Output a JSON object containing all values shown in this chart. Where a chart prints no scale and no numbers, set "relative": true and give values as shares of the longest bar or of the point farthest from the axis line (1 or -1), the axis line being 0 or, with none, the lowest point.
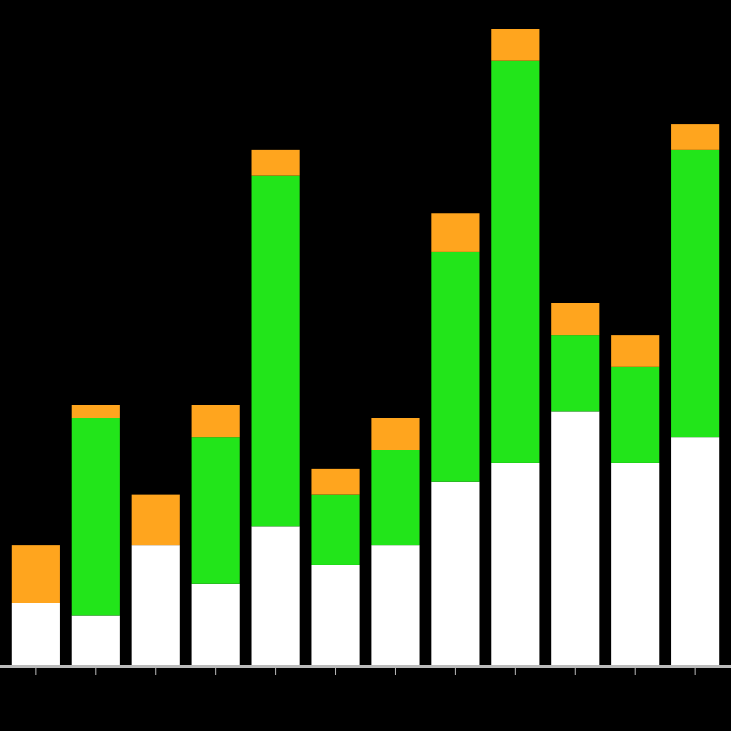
{
  "chart_data": {
    "type": "bar",
    "stacked": true,
    "relative": true,
    "categories": [
      null,
      null,
      null,
      null,
      null,
      null,
      null,
      null,
      null,
      null,
      null,
      null
    ],
    "series": [
      {
        "color": "#ffffff",
        "values": [
          0.1,
          0.08,
          0.19,
          0.13,
          0.22,
          0.16,
          0.19,
          0.29,
          0.32,
          0.4,
          0.32,
          0.36
        ]
      },
      {
        "color": "#22e51a",
        "values": [
          0,
          0.31,
          0,
          0.23,
          0.55,
          0.11,
          0.15,
          0.36,
          0.63,
          0.12,
          0.15,
          0.45
        ]
      },
      {
        "color": "#ffa51e",
        "values": [
          0.09,
          0.02,
          0.08,
          0.05,
          0.04,
          0.04,
          0.05,
          0.06,
          0.05,
          0.05,
          0.05,
          0.04
        ]
      }
    ]
  }
}
